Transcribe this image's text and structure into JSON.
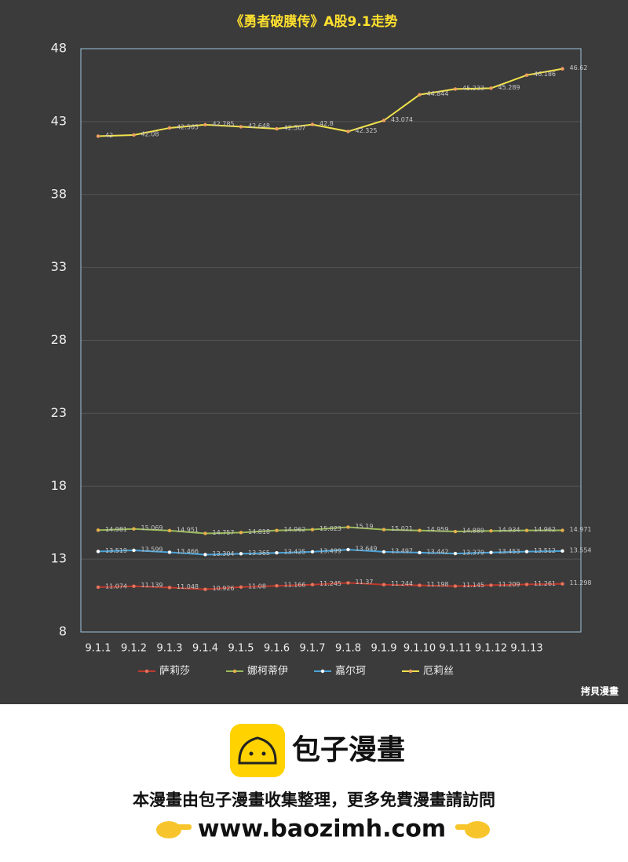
{
  "chart_data": {
    "type": "line",
    "title": "《勇者破膜传》A股9.1走势",
    "categories": [
      "9.1.1",
      "9.1.2",
      "9.1.3",
      "9.1.4",
      "9.1.5",
      "9.1.6",
      "9.1.7",
      "9.1.8",
      "9.1.9",
      "9.1.10",
      "9.1.11",
      "9.1.12",
      "9.1.13",
      null
    ],
    "series": [
      {
        "name": "萨莉莎",
        "color": "#c0392b",
        "marker_color": "#e8735c",
        "values": [
          11.074,
          11.139,
          11.048,
          10.926,
          11.08,
          11.166,
          11.245,
          11.37,
          11.244,
          11.198,
          11.145,
          11.209,
          11.261,
          11.298
        ]
      },
      {
        "name": "娜柯蒂伊",
        "color": "#9bbb59",
        "marker_color": "#e8b04a",
        "values": [
          14.981,
          15.069,
          14.951,
          14.757,
          14.818,
          14.962,
          15.023,
          15.19,
          15.021,
          14.959,
          14.889,
          14.934,
          14.962,
          14.971
        ]
      },
      {
        "name": "嘉尔珂",
        "color": "#4aa3d8",
        "marker_color": "#ffffff",
        "values": [
          13.519,
          13.599,
          13.466,
          13.304,
          13.365,
          13.425,
          13.499,
          13.649,
          13.497,
          13.442,
          13.379,
          13.453,
          13.512,
          13.554
        ]
      },
      {
        "name": "厄莉丝",
        "color": "#f2e34c",
        "marker_color": "#f0a060",
        "values": [
          42,
          42.08,
          42.565,
          42.785,
          42.648,
          42.507,
          42.8,
          42.325,
          43.074,
          44.844,
          45.233,
          45.289,
          46.186,
          46.62
        ]
      }
    ],
    "ylim": [
      8,
      48
    ],
    "yticks": [
      8,
      13,
      18,
      23,
      28,
      33,
      38,
      43,
      48
    ],
    "grid": true,
    "legend": "bottom",
    "data_labels": true,
    "watermark": "拷貝漫畫"
  },
  "footer": {
    "brand": "包子漫畫",
    "notice": "本漫畫由包子漫畫收集整理，更多免費漫畫請訪問",
    "url": "www.baozimh.com"
  }
}
